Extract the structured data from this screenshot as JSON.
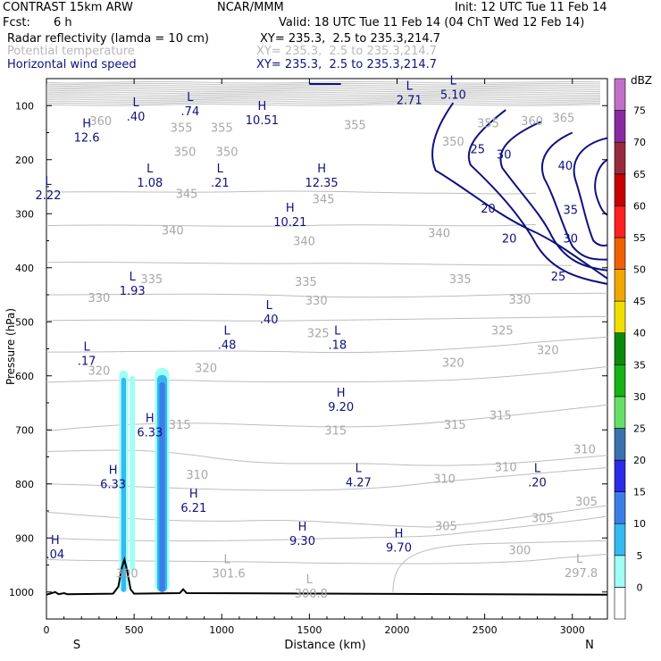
{
  "header": {
    "model": "CONTRAST 15km ARW",
    "org": "NCAR/MMM",
    "init": "Init: 12 UTC Tue 11 Feb 14",
    "fcst_label": "Fcst:",
    "fcst_value": "6 h",
    "valid": "Valid: 18 UTC Tue 11 Feb 14 (04 ChT Wed 12 Feb 14)",
    "fields": [
      {
        "name": "Radar reflectivity (lamda = 10 cm)",
        "xy": "XY= 235.3,  2.5 to 235.3,214.7",
        "color": "#000000"
      },
      {
        "name": "Potential temperature",
        "xy": "XY= 235.3,  2.5 to 235.3,214.7",
        "color": "#b8b8b8"
      },
      {
        "name": "Horizontal wind speed",
        "xy": "XY= 235.3,  2.5 to 235.3,214.7",
        "color": "#101080"
      }
    ]
  },
  "chart_data": {
    "type": "cross-section",
    "xlabel": "Distance (km)",
    "ylabel": "Pressure (hPa)",
    "xlim": [
      0,
      3200
    ],
    "ylim": [
      1050,
      50
    ],
    "x_ticks": [
      0,
      500,
      1000,
      1500,
      2000,
      2500,
      3000
    ],
    "y_ticks": [
      100,
      200,
      300,
      400,
      500,
      600,
      700,
      800,
      900,
      1000
    ],
    "x_end_labels": {
      "left": "S",
      "right": "N"
    },
    "colorbar": {
      "unit": "dBZ",
      "levels": [
        0,
        5,
        10,
        15,
        20,
        25,
        30,
        35,
        40,
        45,
        50,
        55,
        60,
        65,
        70,
        75
      ],
      "colors": [
        "#ffffff",
        "#9ffff5",
        "#36b8f0",
        "#3c7ee8",
        "#2a2ae8",
        "#3a72b0",
        "#66e066",
        "#16b216",
        "#0a8a0a",
        "#f0e000",
        "#f0a800",
        "#f06000",
        "#ff2020",
        "#c80000",
        "#982a40",
        "#8a2aa0",
        "#c070c8"
      ]
    },
    "theta_labels": [
      {
        "text": "360",
        "x": 310,
        "p": 128
      },
      {
        "text": "355",
        "x": 770,
        "p": 140
      },
      {
        "text": "355",
        "x": 1000,
        "p": 140
      },
      {
        "text": "355",
        "x": 1760,
        "p": 135
      },
      {
        "text": "350",
        "x": 790,
        "p": 185
      },
      {
        "text": "350",
        "x": 1030,
        "p": 185
      },
      {
        "text": "350",
        "x": 2320,
        "p": 166
      },
      {
        "text": "355",
        "x": 2520,
        "p": 132
      },
      {
        "text": "360",
        "x": 2770,
        "p": 128
      },
      {
        "text": "365",
        "x": 2950,
        "p": 122
      },
      {
        "text": "345",
        "x": 800,
        "p": 262
      },
      {
        "text": "345",
        "x": 1580,
        "p": 272
      },
      {
        "text": "340",
        "x": 720,
        "p": 330
      },
      {
        "text": "340",
        "x": 1470,
        "p": 350
      },
      {
        "text": "340",
        "x": 2240,
        "p": 335
      },
      {
        "text": "335",
        "x": 600,
        "p": 420
      },
      {
        "text": "335",
        "x": 1480,
        "p": 425
      },
      {
        "text": "335",
        "x": 2360,
        "p": 420
      },
      {
        "text": "330",
        "x": 300,
        "p": 455
      },
      {
        "text": "330",
        "x": 1540,
        "p": 460
      },
      {
        "text": "330",
        "x": 2700,
        "p": 458
      },
      {
        "text": "325",
        "x": 1550,
        "p": 520
      },
      {
        "text": "325",
        "x": 2600,
        "p": 515
      },
      {
        "text": "320",
        "x": 2860,
        "p": 552
      },
      {
        "text": "320",
        "x": 300,
        "p": 590
      },
      {
        "text": "320",
        "x": 910,
        "p": 585
      },
      {
        "text": "320",
        "x": 2320,
        "p": 575
      },
      {
        "text": "315",
        "x": 760,
        "p": 690
      },
      {
        "text": "315",
        "x": 1650,
        "p": 700
      },
      {
        "text": "315",
        "x": 2330,
        "p": 690
      },
      {
        "text": "315",
        "x": 2590,
        "p": 672
      },
      {
        "text": "310",
        "x": 860,
        "p": 782
      },
      {
        "text": "310",
        "x": 2270,
        "p": 790
      },
      {
        "text": "310",
        "x": 2620,
        "p": 768
      },
      {
        "text": "310",
        "x": 3070,
        "p": 735
      },
      {
        "text": "305",
        "x": 2280,
        "p": 877
      },
      {
        "text": "305",
        "x": 2830,
        "p": 862
      },
      {
        "text": "305",
        "x": 3080,
        "p": 832
      },
      {
        "text": "300",
        "x": 2700,
        "p": 922
      },
      {
        "text": "300",
        "x": 460,
        "p": 965
      }
    ],
    "wind_labels": [
      {
        "text": "25",
        "x": 2460,
        "p": 180
      },
      {
        "text": "30",
        "x": 2610,
        "p": 190
      },
      {
        "text": "40",
        "x": 2960,
        "p": 210
      },
      {
        "text": "20",
        "x": 2520,
        "p": 290
      },
      {
        "text": "20",
        "x": 2640,
        "p": 345
      },
      {
        "text": "35",
        "x": 2990,
        "p": 292
      },
      {
        "text": "30",
        "x": 2990,
        "p": 345
      },
      {
        "text": "25",
        "x": 2920,
        "p": 415
      }
    ],
    "theta_extrema": [
      {
        "kind": "L",
        "value": "301.6",
        "x": 1040,
        "p": 963
      },
      {
        "kind": "L",
        "value": "300.8",
        "x": 1510,
        "p": 1000
      },
      {
        "kind": "L",
        "value": "297.8",
        "x": 3050,
        "p": 962
      }
    ],
    "wind_extrema": [
      {
        "kind": "L",
        "value": ".40",
        "x": 510,
        "p": 118
      },
      {
        "kind": "L",
        "value": ".74",
        "x": 820,
        "p": 108
      },
      {
        "kind": "H",
        "value": "10.51",
        "x": 1230,
        "p": 124
      },
      {
        "kind": "L",
        "value": "2.71",
        "x": 2070,
        "p": 87
      },
      {
        "kind": "L",
        "value": "5.10",
        "x": 2320,
        "p": 77
      },
      {
        "kind": "H",
        "value": "12.6",
        "x": 230,
        "p": 157
      },
      {
        "kind": "L",
        "value": "1.08",
        "x": 590,
        "p": 240
      },
      {
        "kind": "L",
        "value": ".21",
        "x": 990,
        "p": 240
      },
      {
        "kind": "H",
        "value": "12.35",
        "x": 1570,
        "p": 240
      },
      {
        "kind": "L",
        "value": "2.22",
        "x": 10,
        "p": 263
      },
      {
        "kind": "H",
        "value": "10.21",
        "x": 1390,
        "p": 313
      },
      {
        "kind": "L",
        "value": "1.93",
        "x": 490,
        "p": 440
      },
      {
        "kind": "L",
        "value": ".40",
        "x": 1270,
        "p": 493
      },
      {
        "kind": "L",
        "value": ".48",
        "x": 1030,
        "p": 540
      },
      {
        "kind": "L",
        "value": ".18",
        "x": 1660,
        "p": 540
      },
      {
        "kind": "L",
        "value": ".17",
        "x": 230,
        "p": 570
      },
      {
        "kind": "H",
        "value": "9.20",
        "x": 1680,
        "p": 655
      },
      {
        "kind": "H",
        "value": "6.33",
        "x": 590,
        "p": 702
      },
      {
        "kind": "H",
        "value": "6.33",
        "x": 380,
        "p": 798
      },
      {
        "kind": "L",
        "value": "4.27",
        "x": 1780,
        "p": 795
      },
      {
        "kind": "L",
        "value": ".20",
        "x": 2800,
        "p": 795
      },
      {
        "kind": "H",
        "value": "6.21",
        "x": 840,
        "p": 842
      },
      {
        "kind": "H",
        "value": "9.30",
        "x": 1460,
        "p": 903
      },
      {
        "kind": "H",
        "value": "9.70",
        "x": 2010,
        "p": 915
      },
      {
        "kind": "H",
        "value": ".04",
        "x": 50,
        "p": 928
      }
    ]
  }
}
